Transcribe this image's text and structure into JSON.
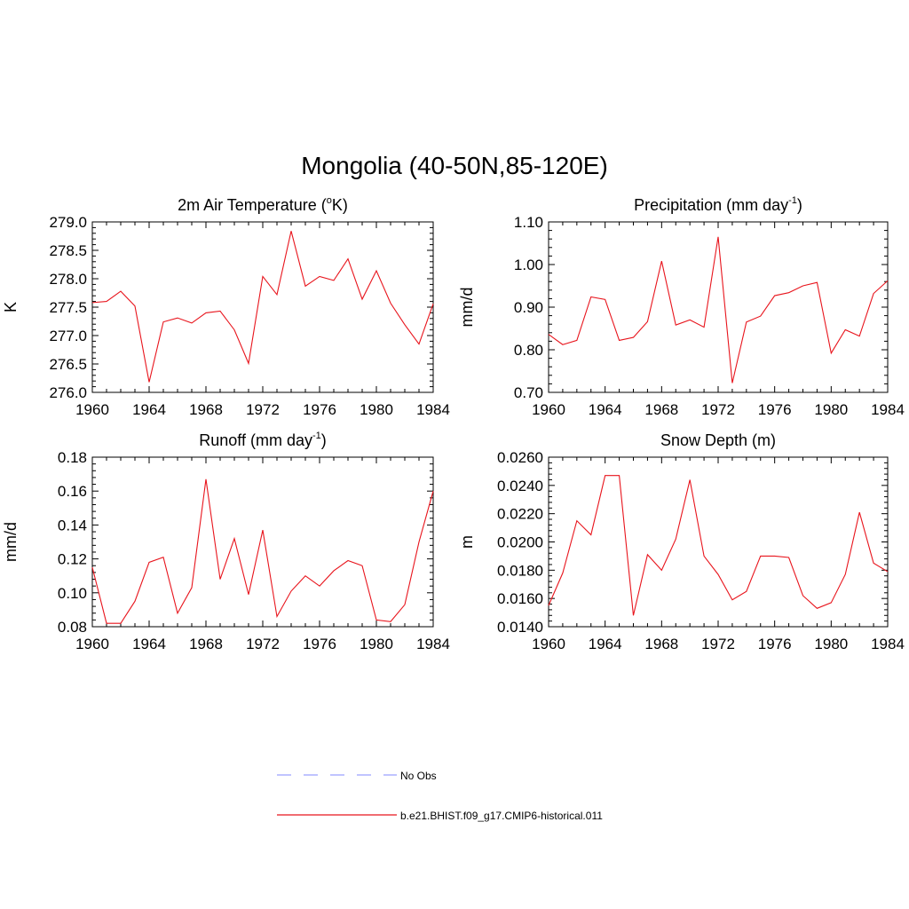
{
  "title": "Mongolia (40-50N,85-120E)",
  "colors": {
    "series": "#e8141c",
    "obs": "#9aa0ff",
    "axis": "#000000"
  },
  "chart_data": [
    {
      "type": "line",
      "title": "2m Air Temperature (oK)",
      "title_parts": {
        "pre": "2m Air Temperature (",
        "sup": "o",
        "post": "K)"
      },
      "ylabel": "K",
      "xlim": [
        1960,
        1984
      ],
      "ylim": [
        276.0,
        279.0
      ],
      "xticks": [
        1960,
        1964,
        1968,
        1972,
        1976,
        1980,
        1984
      ],
      "yticks": [
        276.0,
        276.5,
        277.0,
        277.5,
        278.0,
        278.5,
        279.0
      ],
      "ytick_labels": [
        "276.0",
        "276.5",
        "277.0",
        "277.5",
        "278.0",
        "278.5",
        "279.0"
      ],
      "x": [
        1960,
        1961,
        1962,
        1963,
        1964,
        1965,
        1966,
        1967,
        1968,
        1969,
        1970,
        1971,
        1972,
        1973,
        1974,
        1975,
        1976,
        1977,
        1978,
        1979,
        1980,
        1981,
        1982,
        1983,
        1984
      ],
      "series": [
        {
          "name": "b.e21.BHIST.f09_g17.CMIP6-historical.011",
          "values": [
            277.58,
            277.6,
            277.78,
            277.52,
            276.18,
            277.24,
            277.31,
            277.22,
            277.4,
            277.43,
            277.1,
            276.51,
            278.04,
            277.72,
            278.84,
            277.87,
            278.04,
            277.97,
            278.35,
            277.64,
            278.14,
            277.57,
            277.19,
            276.85,
            277.56
          ]
        }
      ]
    },
    {
      "type": "line",
      "title": "Precipitation (mm day-1)",
      "title_parts": {
        "pre": "Precipitation (mm day",
        "sup": "-1",
        "post": ")"
      },
      "ylabel": "mm/d",
      "xlim": [
        1960,
        1984
      ],
      "ylim": [
        0.7,
        1.1
      ],
      "xticks": [
        1960,
        1964,
        1968,
        1972,
        1976,
        1980,
        1984
      ],
      "yticks": [
        0.7,
        0.8,
        0.9,
        1.0,
        1.1
      ],
      "ytick_labels": [
        "0.70",
        "0.80",
        "0.90",
        "1.00",
        "1.10"
      ],
      "x": [
        1960,
        1961,
        1962,
        1963,
        1964,
        1965,
        1966,
        1967,
        1968,
        1969,
        1970,
        1971,
        1972,
        1973,
        1974,
        1975,
        1976,
        1977,
        1978,
        1979,
        1980,
        1981,
        1982,
        1983,
        1984
      ],
      "series": [
        {
          "name": "b.e21.BHIST.f09_g17.CMIP6-historical.011",
          "values": [
            0.836,
            0.812,
            0.822,
            0.924,
            0.918,
            0.822,
            0.829,
            0.866,
            1.008,
            0.858,
            0.87,
            0.853,
            1.065,
            0.722,
            0.865,
            0.879,
            0.927,
            0.934,
            0.95,
            0.958,
            0.792,
            0.847,
            0.832,
            0.932,
            0.962
          ]
        }
      ]
    },
    {
      "type": "line",
      "title": "Runoff (mm day-1)",
      "title_parts": {
        "pre": "Runoff (mm day",
        "sup": "-1",
        "post": ")"
      },
      "ylabel": "mm/d",
      "xlim": [
        1960,
        1984
      ],
      "ylim": [
        0.08,
        0.18
      ],
      "xticks": [
        1960,
        1964,
        1968,
        1972,
        1976,
        1980,
        1984
      ],
      "yticks": [
        0.08,
        0.1,
        0.12,
        0.14,
        0.16,
        0.18
      ],
      "ytick_labels": [
        "0.08",
        "0.10",
        "0.12",
        "0.14",
        "0.16",
        "0.18"
      ],
      "x": [
        1960,
        1961,
        1962,
        1963,
        1964,
        1965,
        1966,
        1967,
        1968,
        1969,
        1970,
        1971,
        1972,
        1973,
        1974,
        1975,
        1976,
        1977,
        1978,
        1979,
        1980,
        1981,
        1982,
        1983,
        1984
      ],
      "series": [
        {
          "name": "b.e21.BHIST.f09_g17.CMIP6-historical.011",
          "values": [
            0.115,
            0.082,
            0.082,
            0.095,
            0.118,
            0.121,
            0.088,
            0.103,
            0.167,
            0.108,
            0.132,
            0.099,
            0.137,
            0.086,
            0.101,
            0.11,
            0.104,
            0.113,
            0.119,
            0.116,
            0.084,
            0.083,
            0.093,
            0.13,
            0.16
          ]
        }
      ]
    },
    {
      "type": "line",
      "title": "Snow Depth (m)",
      "ylabel": "m",
      "xlim": [
        1960,
        1984
      ],
      "ylim": [
        0.014,
        0.026
      ],
      "xticks": [
        1960,
        1964,
        1968,
        1972,
        1976,
        1980,
        1984
      ],
      "yticks": [
        0.014,
        0.016,
        0.018,
        0.02,
        0.022,
        0.024,
        0.026
      ],
      "ytick_labels": [
        "0.0140",
        "0.0160",
        "0.0180",
        "0.0200",
        "0.0220",
        "0.0240",
        "0.0260"
      ],
      "x": [
        1960,
        1961,
        1962,
        1963,
        1964,
        1965,
        1966,
        1967,
        1968,
        1969,
        1970,
        1971,
        1972,
        1973,
        1974,
        1975,
        1976,
        1977,
        1978,
        1979,
        1980,
        1981,
        1982,
        1983,
        1984
      ],
      "series": [
        {
          "name": "b.e21.BHIST.f09_g17.CMIP6-historical.011",
          "values": [
            0.0155,
            0.0178,
            0.0215,
            0.0205,
            0.0247,
            0.0247,
            0.0148,
            0.0191,
            0.018,
            0.0202,
            0.0244,
            0.019,
            0.0177,
            0.0159,
            0.0165,
            0.019,
            0.019,
            0.0189,
            0.0162,
            0.0153,
            0.0157,
            0.0177,
            0.0221,
            0.0185,
            0.0179
          ]
        }
      ]
    }
  ],
  "legend": [
    {
      "label": "No Obs",
      "style": "dashed"
    },
    {
      "label": "b.e21.BHIST.f09_g17.CMIP6-historical.011",
      "style": "solid"
    }
  ]
}
